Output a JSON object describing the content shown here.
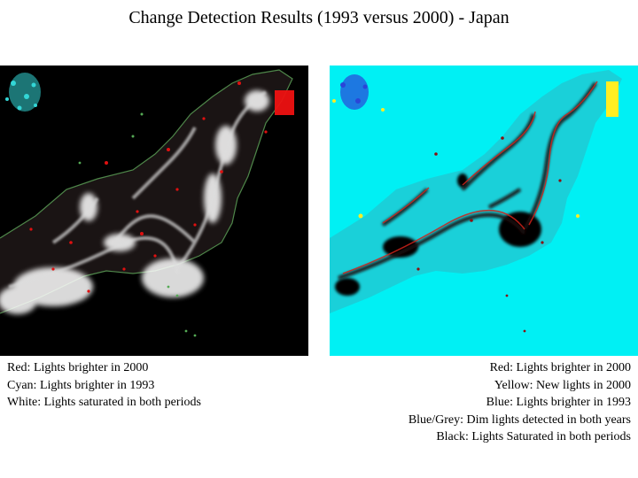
{
  "title": "Change Detection Results (1993 versus 2000) - Japan",
  "left_panel": {
    "background_color": "#000000",
    "legend": [
      "Red: Lights brighter in 2000",
      "Cyan: Lights brighter in 1993",
      "White: Lights saturated in both periods"
    ]
  },
  "right_panel": {
    "background_color": "#00f0f4",
    "legend": [
      "Red: Lights brighter in 2000",
      "Yellow: New lights in 2000",
      "Blue: Lights brighter in 1993",
      "Blue/Grey: Dim lights detected in both years",
      "Black: Lights Saturated in both periods"
    ]
  }
}
